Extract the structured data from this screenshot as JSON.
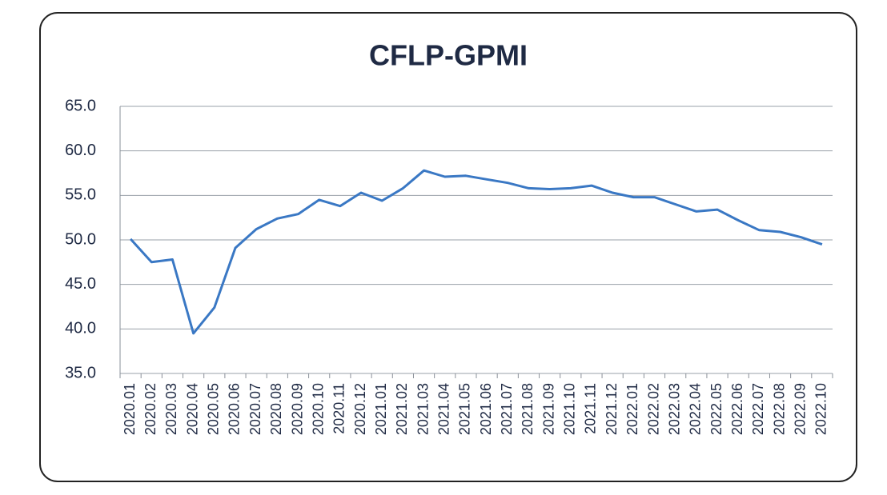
{
  "chart_data": {
    "type": "line",
    "title": "CFLP-GPMI",
    "categories": [
      "2020.01",
      "2020.02",
      "2020.03",
      "2020.04",
      "2020.05",
      "2020.06",
      "2020.07",
      "2020.08",
      "2020.09",
      "2020.10",
      "2020.11",
      "2020.12",
      "2021.01",
      "2021.02",
      "2021.03",
      "2021.04",
      "2021.05",
      "2021.06",
      "2021.07",
      "2021.08",
      "2021.09",
      "2021.10",
      "2021.11",
      "2021.12",
      "2022.01",
      "2022.02",
      "2022.03",
      "2022.04",
      "2022.05",
      "2022.06",
      "2022.07",
      "2022.08",
      "2022.09",
      "2022.10"
    ],
    "values": [
      50.1,
      47.5,
      47.8,
      39.5,
      42.4,
      49.1,
      51.2,
      52.4,
      52.9,
      54.5,
      53.8,
      55.3,
      54.4,
      55.8,
      57.8,
      57.1,
      57.2,
      56.8,
      56.4,
      55.8,
      55.7,
      55.8,
      56.1,
      55.3,
      54.8,
      54.8,
      54.0,
      53.2,
      53.4,
      52.2,
      51.1,
      50.9,
      50.3,
      49.5
    ],
    "color": "#3a78c4",
    "ylim": [
      35,
      65
    ],
    "yticks": [
      {
        "value": 35,
        "label": "35.0"
      },
      {
        "value": 40,
        "label": "40.0"
      },
      {
        "value": 45,
        "label": "45.0"
      },
      {
        "value": 50,
        "label": "50.0"
      },
      {
        "value": 55,
        "label": "55.0"
      },
      {
        "value": 60,
        "label": "60.0"
      },
      {
        "value": 65,
        "label": "65.0"
      }
    ],
    "grid": true
  }
}
